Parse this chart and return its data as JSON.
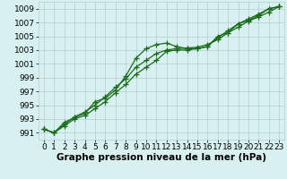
{
  "xlabel": "Graphe pression niveau de la mer (hPa)",
  "hours": [
    0,
    1,
    2,
    3,
    4,
    5,
    6,
    7,
    8,
    9,
    10,
    11,
    12,
    13,
    14,
    15,
    16,
    17,
    18,
    19,
    20,
    21,
    22,
    23
  ],
  "series1": [
    991.5,
    991.0,
    992.2,
    993.3,
    994.0,
    995.0,
    996.2,
    997.6,
    998.8,
    1000.5,
    1001.5,
    1002.5,
    1003.0,
    1003.2,
    1003.3,
    1003.4,
    1003.8,
    1004.5,
    1005.5,
    1006.3,
    1007.2,
    1007.8,
    1008.5,
    1009.3
  ],
  "series2": [
    991.5,
    991.0,
    992.5,
    993.2,
    993.8,
    995.5,
    996.0,
    997.2,
    999.2,
    1001.8,
    1003.2,
    1003.8,
    1004.0,
    1003.5,
    1003.2,
    1003.2,
    1003.5,
    1005.0,
    1005.5,
    1006.8,
    1007.3,
    1008.0,
    1009.0,
    1009.3
  ],
  "series3": [
    991.5,
    991.0,
    992.0,
    993.0,
    993.5,
    994.5,
    995.5,
    996.8,
    998.0,
    999.5,
    1000.5,
    1001.5,
    1002.8,
    1003.0,
    1003.0,
    1003.2,
    1003.5,
    1004.8,
    1005.8,
    1006.8,
    1007.5,
    1008.2,
    1009.0,
    1009.3
  ],
  "line_color": "#1a6b1a",
  "bg_color": "#d8f0f0",
  "grid_color": "#b0d0d0",
  "ylim_min": 990,
  "ylim_max": 1010,
  "yticks": [
    991,
    993,
    995,
    997,
    999,
    1001,
    1003,
    1005,
    1007,
    1009
  ],
  "xticks": [
    0,
    1,
    2,
    3,
    4,
    5,
    6,
    7,
    8,
    9,
    10,
    11,
    12,
    13,
    14,
    15,
    16,
    17,
    18,
    19,
    20,
    21,
    22,
    23
  ],
  "marker": "+",
  "markersize": 4,
  "linewidth": 0.9,
  "xlabel_fontsize": 7.5,
  "tick_fontsize": 6.5
}
